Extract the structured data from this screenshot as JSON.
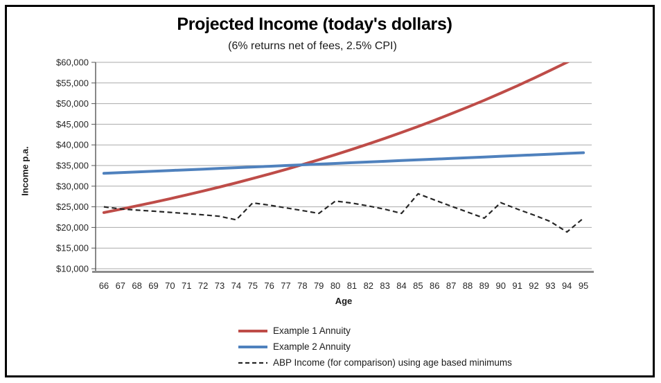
{
  "chart_data": {
    "type": "line",
    "title": "Projected Income (today's dollars)",
    "subtitle": "(6% returns net of fees, 2.5% CPI)",
    "xlabel": "Age",
    "ylabel": "Income p.a.",
    "x": [
      66,
      67,
      68,
      69,
      70,
      71,
      72,
      73,
      74,
      75,
      76,
      77,
      78,
      79,
      80,
      81,
      82,
      83,
      84,
      85,
      86,
      87,
      88,
      89,
      90,
      91,
      92,
      93,
      94,
      95
    ],
    "ylim": [
      10000,
      60000
    ],
    "ytick_step": 5000,
    "ytick_labels": [
      "$10,000",
      "$15,000",
      "$20,000",
      "$25,000",
      "$30,000",
      "$35,000",
      "$40,000",
      "$45,000",
      "$50,000",
      "$55,000",
      "$60,000"
    ],
    "grid": true,
    "legend_position": "bottom",
    "colors": {
      "grid": "#A9A9A9",
      "axis": "#555555",
      "axis_bottom": "#8C8C8C",
      "tick_text": "#262626"
    },
    "series": [
      {
        "name": "Example 1 Annuity",
        "color": "#BE4C48",
        "style": "solid",
        "width": 4,
        "values": [
          23600,
          24400,
          25230,
          26080,
          26970,
          27880,
          28830,
          29800,
          30810,
          31860,
          32940,
          34050,
          35210,
          36400,
          37630,
          38910,
          40230,
          41590,
          43000,
          44460,
          45970,
          47530,
          49140,
          50800,
          52530,
          54310,
          56150,
          58050,
          60000,
          62040
        ]
      },
      {
        "name": "Example 2 Annuity",
        "color": "#4F81BD",
        "style": "solid",
        "width": 4,
        "values": [
          33100,
          33270,
          33440,
          33620,
          33790,
          33960,
          34130,
          34310,
          34480,
          34650,
          34820,
          35000,
          35170,
          35340,
          35510,
          35690,
          35860,
          36030,
          36200,
          36380,
          36550,
          36720,
          36890,
          37070,
          37240,
          37410,
          37580,
          37760,
          37930,
          38100
        ]
      },
      {
        "name": "ABP Income (for comparison) using age based minimums",
        "color": "#262626",
        "style": "dashed",
        "width": 2.2,
        "values": [
          25000,
          24500,
          24200,
          23950,
          23650,
          23350,
          23050,
          22700,
          21850,
          25950,
          25400,
          24750,
          24100,
          23400,
          26400,
          25900,
          25200,
          24400,
          23400,
          28150,
          26650,
          25150,
          23700,
          22250,
          26000,
          24450,
          23000,
          21450,
          18900,
          22250
        ]
      }
    ]
  }
}
